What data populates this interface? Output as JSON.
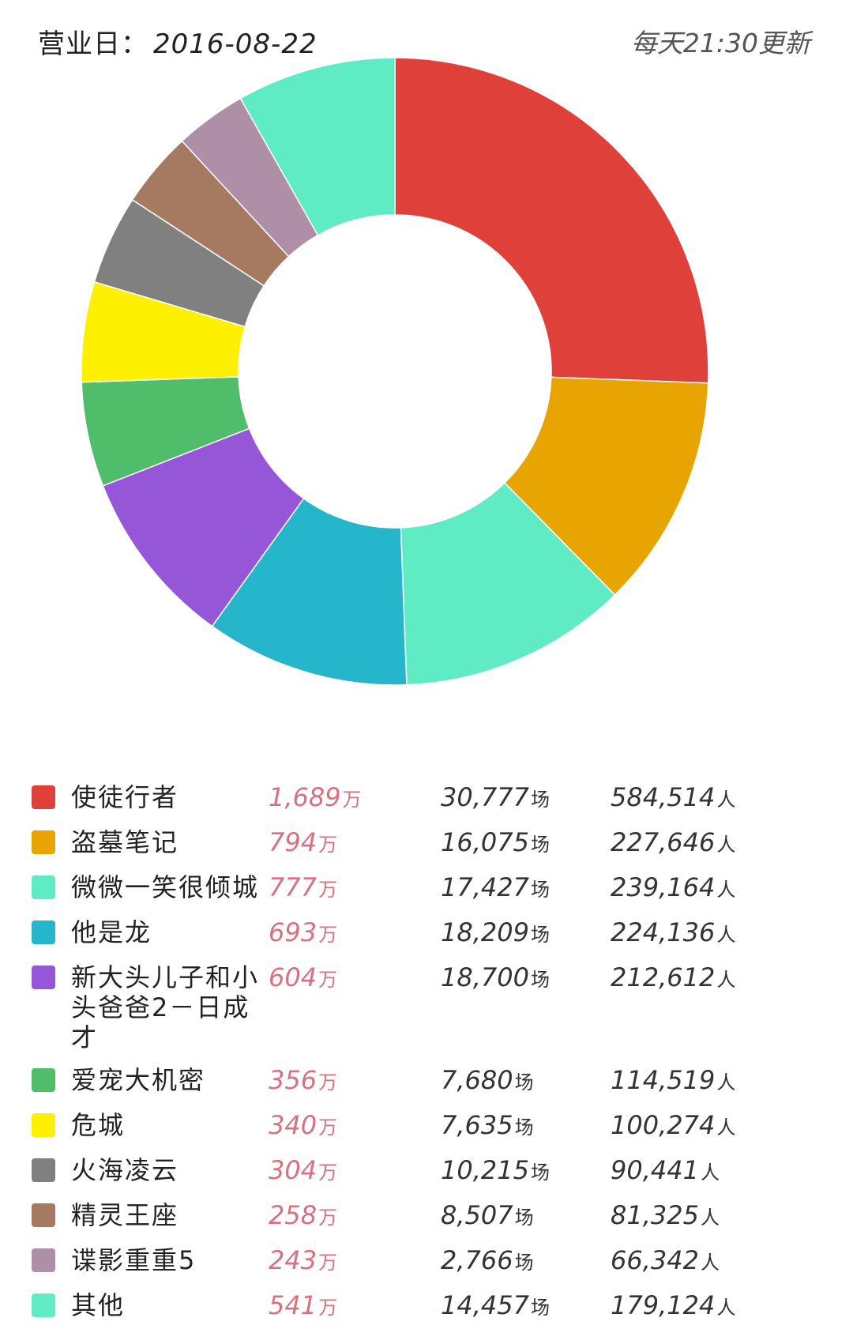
{
  "header": {
    "date_label": "营业日：",
    "date": "2016-08-22",
    "update_note": "每天21:30更新"
  },
  "units": {
    "gross": "万",
    "shows": "场",
    "audience": "人"
  },
  "chart_data": {
    "type": "pie",
    "donut": true,
    "title": "",
    "categories": [
      "使徒行者",
      "盗墓笔记",
      "微微一笑很倾城",
      "他是龙",
      "新大头儿子和小头爸爸2－日成才",
      "爱宠大机密",
      "危城",
      "火海凌云",
      "精灵王座",
      "谍影重重5",
      "其他"
    ],
    "values": [
      1689,
      794,
      777,
      693,
      604,
      356,
      340,
      304,
      258,
      243,
      541
    ],
    "colors": [
      "#e0403a",
      "#e8a400",
      "#5fecc4",
      "#25b6cc",
      "#9556d8",
      "#4fbd6a",
      "#fdf000",
      "#808080",
      "#a67961",
      "#af8ea7",
      "#5fecc4"
    ],
    "shows": [
      "30,777",
      "16,075",
      "17,427",
      "18,209",
      "18,700",
      "7,680",
      "7,635",
      "10,215",
      "8,507",
      "2,766",
      "14,457"
    ],
    "audience": [
      "584,514",
      "227,646",
      "239,164",
      "224,136",
      "212,612",
      "114,519",
      "100,274",
      "90,441",
      "81,325",
      "66,342",
      "179,124"
    ],
    "gross_labels": [
      "1,689",
      "794",
      "777",
      "693",
      "604",
      "356",
      "340",
      "304",
      "258",
      "243",
      "541"
    ]
  }
}
